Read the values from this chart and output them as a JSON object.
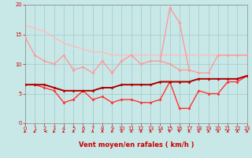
{
  "xlabel": "Vent moyen/en rafales ( km/h )",
  "xlim": [
    0,
    23
  ],
  "ylim": [
    0,
    20
  ],
  "yticks": [
    0,
    5,
    10,
    15,
    20
  ],
  "xticks": [
    0,
    1,
    2,
    3,
    4,
    5,
    6,
    7,
    8,
    9,
    10,
    11,
    12,
    13,
    14,
    15,
    16,
    17,
    18,
    19,
    20,
    21,
    22,
    23
  ],
  "bg_color": "#c8e8e8",
  "grid_color": "#aacccc",
  "lines": [
    {
      "x": [
        0,
        1,
        2,
        3,
        4,
        5,
        6,
        7,
        8,
        9,
        10,
        11,
        12,
        13,
        14,
        15,
        16,
        17,
        18,
        19,
        20,
        21,
        22,
        23
      ],
      "y": [
        14.5,
        11.5,
        10.5,
        10.0,
        11.5,
        9.0,
        9.5,
        8.5,
        10.5,
        8.5,
        10.5,
        11.5,
        10.0,
        10.5,
        10.5,
        10.0,
        9.0,
        9.0,
        8.5,
        8.5,
        11.5,
        11.5,
        11.5,
        11.5
      ],
      "color": "#ff9999",
      "lw": 1.0,
      "marker": "D",
      "ms": 2.0,
      "zorder": 3
    },
    {
      "x": [
        0,
        1,
        2,
        3,
        4,
        5,
        6,
        7,
        8,
        9,
        10,
        11,
        12,
        13,
        14,
        15,
        16,
        17,
        18,
        19,
        20,
        21,
        22,
        23
      ],
      "y": [
        16.5,
        16.0,
        15.5,
        14.5,
        13.5,
        13.0,
        12.5,
        12.0,
        12.0,
        11.5,
        11.5,
        11.5,
        11.5,
        11.5,
        11.5,
        11.5,
        11.5,
        11.5,
        11.5,
        11.5,
        11.5,
        11.5,
        11.5,
        11.5
      ],
      "color": "#ffbbbb",
      "lw": 1.0,
      "marker": null,
      "ms": 0,
      "zorder": 2
    },
    {
      "x": [
        0,
        1,
        2,
        3,
        4,
        5,
        6,
        7,
        8,
        9,
        10,
        11,
        12,
        13,
        14,
        15,
        16,
        17,
        18,
        19,
        20,
        21,
        22,
        23
      ],
      "y": [
        6.5,
        6.5,
        6.5,
        6.0,
        5.5,
        5.5,
        5.5,
        5.5,
        6.0,
        6.0,
        6.5,
        6.5,
        6.5,
        6.5,
        7.0,
        7.0,
        7.0,
        7.0,
        7.5,
        7.5,
        7.5,
        7.5,
        7.5,
        8.0
      ],
      "color": "#aa0000",
      "lw": 1.3,
      "marker": null,
      "ms": 0,
      "zorder": 6
    },
    {
      "x": [
        0,
        1,
        2,
        3,
        4,
        5,
        6,
        7,
        8,
        9,
        10,
        11,
        12,
        13,
        14,
        15,
        16,
        17,
        18,
        19,
        20,
        21,
        22,
        23
      ],
      "y": [
        6.5,
        6.5,
        6.5,
        6.0,
        5.5,
        5.5,
        5.5,
        5.5,
        6.0,
        6.0,
        6.5,
        6.5,
        6.5,
        6.5,
        7.0,
        7.0,
        7.0,
        7.0,
        7.5,
        7.5,
        7.5,
        7.5,
        7.5,
        8.0
      ],
      "color": "#cc0000",
      "lw": 1.0,
      "marker": "D",
      "ms": 2.0,
      "zorder": 5
    },
    {
      "x": [
        0,
        1,
        2,
        3,
        4,
        5,
        6,
        7,
        8,
        9,
        10,
        11,
        12,
        13,
        14,
        15,
        16,
        17,
        18,
        19,
        20,
        21,
        22,
        23
      ],
      "y": [
        6.5,
        6.5,
        6.0,
        5.5,
        3.5,
        4.0,
        5.5,
        4.0,
        4.5,
        3.5,
        4.0,
        4.0,
        3.5,
        3.5,
        4.0,
        7.0,
        2.5,
        2.5,
        5.5,
        5.0,
        5.0,
        7.0,
        7.0,
        8.0
      ],
      "color": "#ff3333",
      "lw": 1.0,
      "marker": "D",
      "ms": 2.0,
      "zorder": 4
    },
    {
      "x": [
        14,
        15,
        16,
        17
      ],
      "y": [
        10.5,
        19.5,
        17.0,
        9.0
      ],
      "color": "#ff9999",
      "lw": 1.0,
      "marker": "D",
      "ms": 2.0,
      "zorder": 3
    }
  ],
  "wind_arrows": {
    "angles": [
      225,
      225,
      270,
      225,
      225,
      0,
      0,
      0,
      0,
      0,
      0,
      0,
      0,
      0,
      0,
      315,
      315,
      0,
      0,
      0,
      0,
      0,
      0,
      0
    ],
    "color": "#cc0000"
  }
}
